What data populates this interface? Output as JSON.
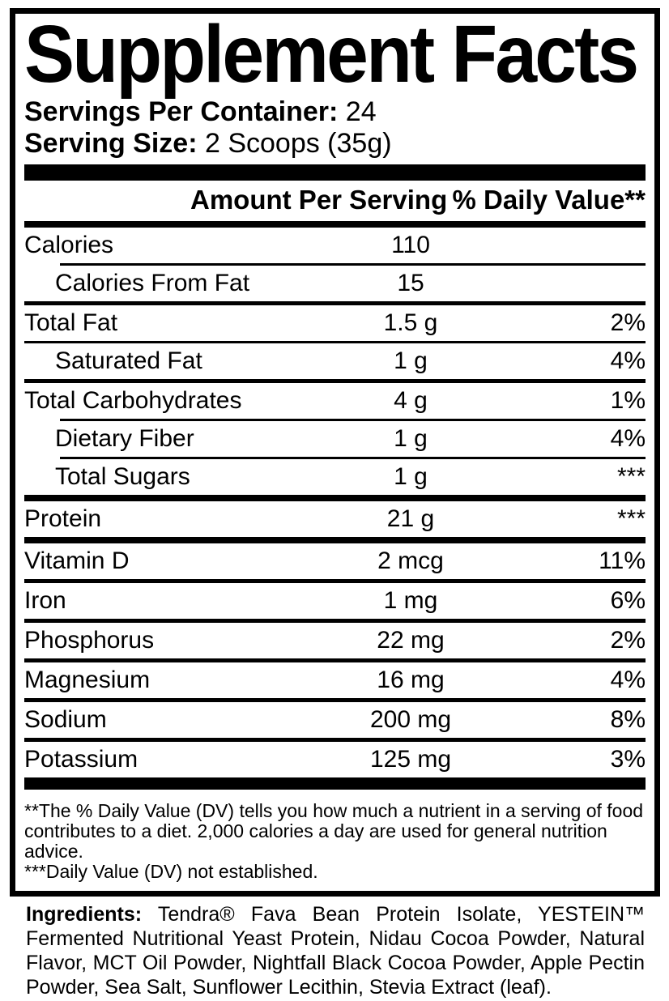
{
  "colors": {
    "ink": "#000000",
    "paper": "#ffffff"
  },
  "label": {
    "title": "Supplement Facts",
    "servings_per_container_label": "Servings Per Container:",
    "servings_per_container_value": "24",
    "serving_size_label": "Serving Size:",
    "serving_size_value": "2 Scoops (35g)",
    "columns": {
      "amount": "Amount Per Serving",
      "dv": "% Daily Value**"
    },
    "rows": [
      {
        "name": "Calories",
        "amount": "110",
        "dv": "",
        "indent": false,
        "sep": {
          "size": "thin",
          "indent": true
        }
      },
      {
        "name": "Calories From Fat",
        "amount": "15",
        "dv": "",
        "indent": true,
        "sep": {
          "size": "medium",
          "indent": false
        }
      },
      {
        "name": "Total Fat",
        "amount": "1.5 g",
        "dv": "2%",
        "indent": false,
        "sep": {
          "size": "thin",
          "indent": false
        }
      },
      {
        "name": "Saturated Fat",
        "amount": "1 g",
        "dv": "4%",
        "indent": true,
        "sep": {
          "size": "medium",
          "indent": false
        }
      },
      {
        "name": "Total Carbohydrates",
        "amount": "4 g",
        "dv": "1%",
        "indent": false,
        "sep": {
          "size": "thin",
          "indent": true
        }
      },
      {
        "name": "Dietary Fiber",
        "amount": "1 g",
        "dv": "4%",
        "indent": true,
        "sep": {
          "size": "thin",
          "indent": true
        }
      },
      {
        "name": "Total Sugars",
        "amount": "1 g",
        "dv": "***",
        "indent": true,
        "sep": {
          "size": "thick",
          "indent": false
        }
      },
      {
        "name": "Protein",
        "amount": "21 g",
        "dv": "***",
        "indent": false,
        "sep": {
          "size": "thick",
          "indent": false
        }
      },
      {
        "name": "Vitamin D",
        "amount": "2 mcg",
        "dv": "11%",
        "indent": false,
        "sep": {
          "size": "medium",
          "indent": false
        }
      },
      {
        "name": "Iron",
        "amount": "1 mg",
        "dv": "6%",
        "indent": false,
        "sep": {
          "size": "medium",
          "indent": false
        }
      },
      {
        "name": "Phosphorus",
        "amount": "22 mg",
        "dv": "2%",
        "indent": false,
        "sep": {
          "size": "medium",
          "indent": false
        }
      },
      {
        "name": "Magnesium",
        "amount": "16 mg",
        "dv": "4%",
        "indent": false,
        "sep": {
          "size": "medium",
          "indent": false
        }
      },
      {
        "name": "Sodium",
        "amount": "200 mg",
        "dv": "8%",
        "indent": false,
        "sep": {
          "size": "medium",
          "indent": false
        }
      },
      {
        "name": "Potassium",
        "amount": "125 mg",
        "dv": "3%",
        "indent": false,
        "sep": null
      }
    ],
    "footnotes": [
      "**The % Daily Value (DV) tells you how much a nutrient in a serving of food contributes to a diet. 2,000 calories a day are used for general nutrition advice.",
      "***Daily Value (DV) not established."
    ],
    "ingredients_label": "Ingredients:",
    "ingredients_text": "Tendra® Fava Bean Protein Isolate, YESTEIN™ Fermented Nutritional Yeast Protein, Nidau Cocoa Powder, Natural Flavor, MCT Oil Powder, Nightfall Black Cocoa Powder, Apple Pectin Powder, Sea Salt, Sunflower Lecithin, Stevia Extract (leaf)."
  }
}
